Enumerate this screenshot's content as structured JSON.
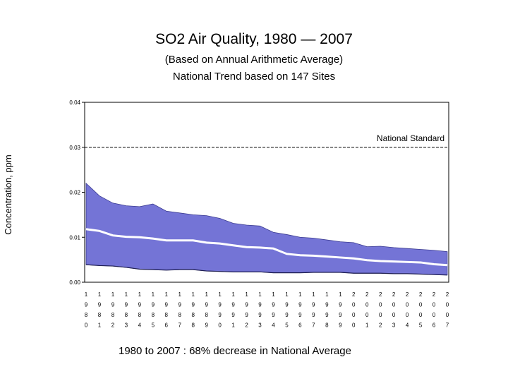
{
  "chart_data": {
    "type": "area",
    "title": "SO2 Air Quality, 1980 — 2007",
    "subtitle_1": "(Based on Annual Arithmetic Average)",
    "subtitle_2": "National Trend based on 147 Sites",
    "xlabel": "",
    "ylabel": "Concentration, ppm",
    "ylim": [
      0,
      0.04
    ],
    "yticks": [
      "0.00",
      "0.01",
      "0.02",
      "0.03",
      "0.04"
    ],
    "x": [
      1980,
      1981,
      1982,
      1983,
      1984,
      1985,
      1986,
      1987,
      1988,
      1989,
      1990,
      1991,
      1992,
      1993,
      1994,
      1995,
      1996,
      1997,
      1998,
      1999,
      2000,
      2001,
      2002,
      2003,
      2004,
      2005,
      2006,
      2007
    ],
    "series": [
      {
        "role": "upper",
        "values": [
          0.022,
          0.0192,
          0.0176,
          0.017,
          0.0168,
          0.0174,
          0.0158,
          0.0154,
          0.015,
          0.0148,
          0.0142,
          0.0131,
          0.0127,
          0.0125,
          0.0111,
          0.0106,
          0.01,
          0.0098,
          0.0094,
          0.009,
          0.0088,
          0.0079,
          0.008,
          0.0077,
          0.0075,
          0.0073,
          0.0071,
          0.0068
        ]
      },
      {
        "role": "average",
        "values": [
          0.0118,
          0.0114,
          0.0104,
          0.0101,
          0.01,
          0.0097,
          0.0093,
          0.0093,
          0.0093,
          0.0088,
          0.0086,
          0.0082,
          0.0078,
          0.0077,
          0.0075,
          0.0063,
          0.006,
          0.0059,
          0.0057,
          0.0055,
          0.0053,
          0.0049,
          0.0047,
          0.0046,
          0.0045,
          0.0044,
          0.004,
          0.0038
        ]
      },
      {
        "role": "lower",
        "values": [
          0.0039,
          0.0037,
          0.0036,
          0.0033,
          0.0029,
          0.0028,
          0.0027,
          0.0028,
          0.0028,
          0.0025,
          0.0024,
          0.0023,
          0.0023,
          0.0023,
          0.0021,
          0.0021,
          0.0021,
          0.0022,
          0.0022,
          0.0022,
          0.002,
          0.002,
          0.002,
          0.0019,
          0.0019,
          0.0018,
          0.0017,
          0.0016
        ]
      }
    ],
    "standard": {
      "label": "National Standard",
      "value": 0.03
    },
    "footer": "1980 to 2007 :  68% decrease in National Average",
    "grid": false,
    "colors": {
      "band": "#7474d6",
      "average": "#ffffff",
      "standard": "#000000"
    }
  }
}
